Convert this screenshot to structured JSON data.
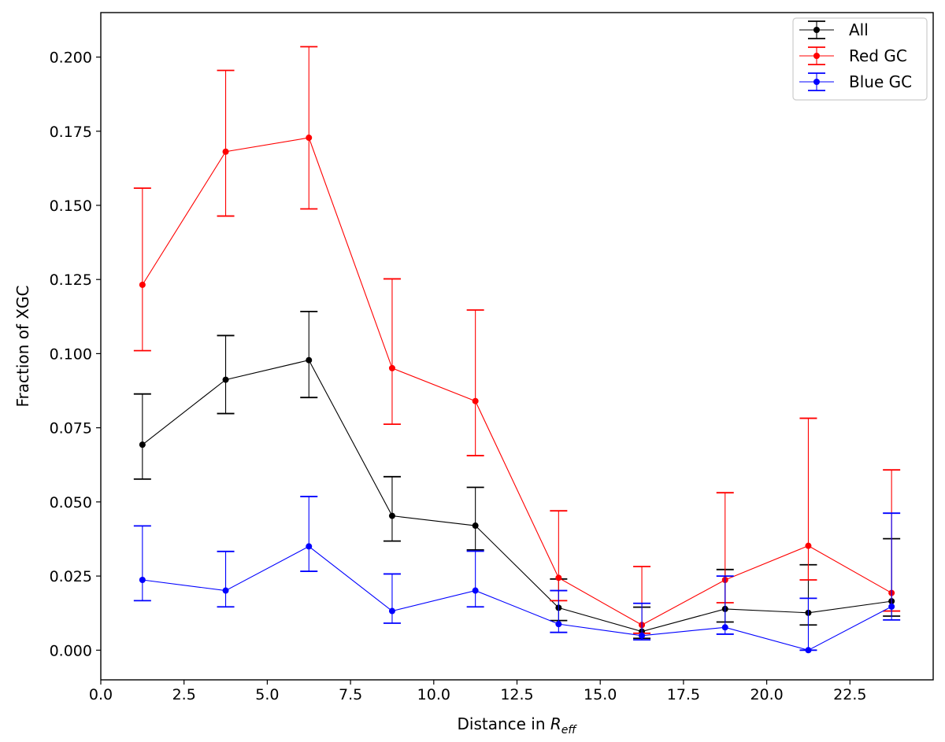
{
  "chart_data": {
    "type": "line",
    "title": "",
    "xlabel": "Distance in",
    "xlabel_math": "R",
    "xlabel_sub": "eff",
    "ylabel": "Fraction of XGC",
    "xlim": [
      0.0,
      25.0
    ],
    "ylim": [
      -0.01,
      0.215
    ],
    "xticks": [
      0.0,
      2.5,
      5.0,
      7.5,
      10.0,
      12.5,
      15.0,
      17.5,
      20.0,
      22.5
    ],
    "xtick_labels": [
      "0.0",
      "2.5",
      "5.0",
      "7.5",
      "10.0",
      "12.5",
      "15.0",
      "17.5",
      "20.0",
      "22.5"
    ],
    "yticks": [
      0.0,
      0.025,
      0.05,
      0.075,
      0.1,
      0.125,
      0.15,
      0.175,
      0.2
    ],
    "ytick_labels": [
      "0.000",
      "0.025",
      "0.050",
      "0.075",
      "0.100",
      "0.125",
      "0.150",
      "0.175",
      "0.200"
    ],
    "grid": false,
    "legend_position": "top-right",
    "x": [
      1.25,
      3.75,
      6.25,
      8.75,
      11.25,
      13.75,
      16.25,
      18.75,
      21.25,
      23.75
    ],
    "series": [
      {
        "name": "All",
        "color": "#000000",
        "values": [
          0.0693,
          0.0912,
          0.0978,
          0.0453,
          0.042,
          0.0143,
          0.0063,
          0.0139,
          0.0126,
          0.0165
        ],
        "err_low": [
          0.0577,
          0.0798,
          0.0852,
          0.0368,
          0.0338,
          0.01,
          0.004,
          0.0095,
          0.0085,
          0.0115
        ],
        "err_high": [
          0.0864,
          0.1061,
          0.1142,
          0.0585,
          0.0549,
          0.024,
          0.0145,
          0.0272,
          0.0288,
          0.0376
        ]
      },
      {
        "name": "Red GC",
        "color": "#ff0000",
        "values": [
          0.1232,
          0.1681,
          0.1728,
          0.0951,
          0.084,
          0.0244,
          0.0085,
          0.0237,
          0.0352,
          0.0193
        ],
        "err_low": [
          0.101,
          0.1464,
          0.1488,
          0.0762,
          0.0656,
          0.0167,
          0.0057,
          0.016,
          0.0237,
          0.0132
        ],
        "err_high": [
          0.1558,
          0.1955,
          0.2035,
          0.1252,
          0.1147,
          0.047,
          0.0282,
          0.0531,
          0.0782,
          0.0608
        ]
      },
      {
        "name": "Blue GC",
        "color": "#0000ff",
        "values": [
          0.0237,
          0.0201,
          0.035,
          0.0132,
          0.0201,
          0.0088,
          0.0049,
          0.0077,
          0.0,
          0.0147
        ],
        "err_low": [
          0.0167,
          0.0146,
          0.0266,
          0.0091,
          0.0146,
          0.006,
          0.0035,
          0.0054,
          0.0,
          0.0102
        ],
        "err_high": [
          0.0419,
          0.0333,
          0.0518,
          0.0257,
          0.0334,
          0.0201,
          0.0158,
          0.025,
          0.0175,
          0.0462
        ]
      }
    ]
  }
}
